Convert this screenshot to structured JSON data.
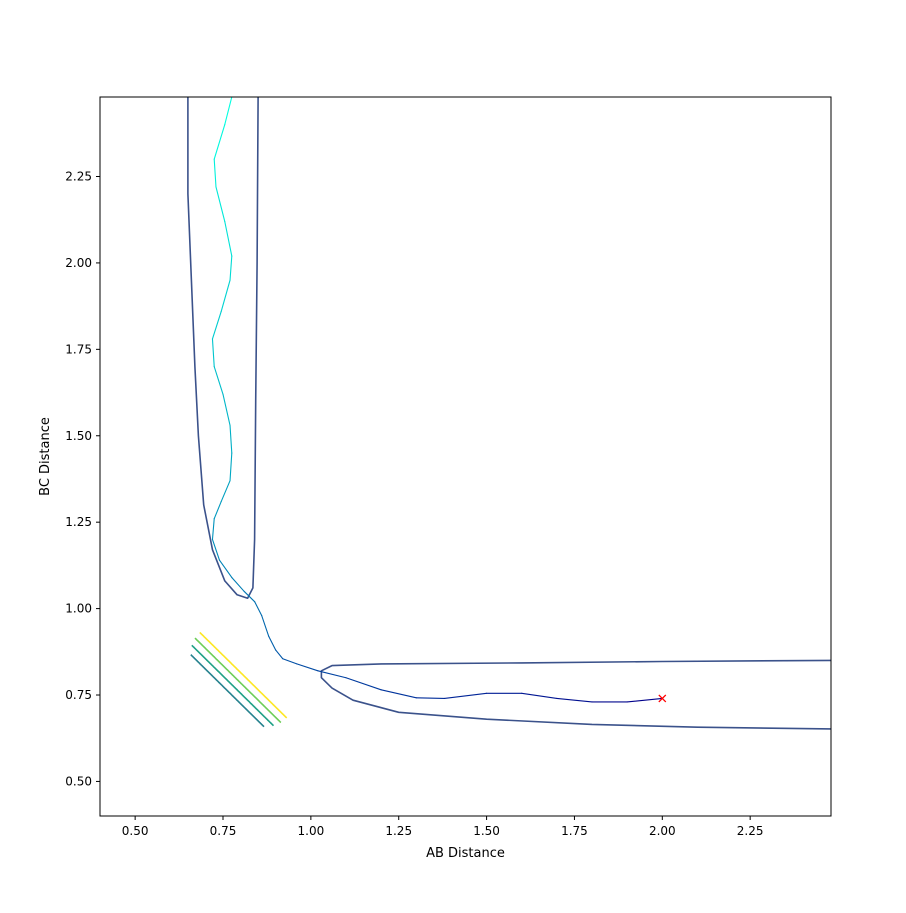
{
  "chart_data": {
    "type": "contour",
    "title": "",
    "xlabel": "AB Distance",
    "ylabel": "BC Distance",
    "xlim": [
      0.4,
      2.48
    ],
    "ylim": [
      0.4,
      2.48
    ],
    "xticks": [
      0.5,
      0.75,
      1.0,
      1.25,
      1.5,
      1.75,
      2.0,
      2.25
    ],
    "xtick_labels": [
      "0.50",
      "0.75",
      "1.00",
      "1.25",
      "1.50",
      "1.75",
      "2.00",
      "2.25"
    ],
    "yticks": [
      0.5,
      0.75,
      1.0,
      1.25,
      1.5,
      1.75,
      2.0,
      2.25
    ],
    "ytick_labels": [
      "0.50",
      "0.75",
      "1.00",
      "1.25",
      "1.50",
      "1.75",
      "2.00",
      "2.25"
    ],
    "grid": false,
    "contours": [
      {
        "level": 1,
        "color": "#26828e",
        "ax": 0.61,
        "ay": 0.61,
        "ex": 0.915,
        "ey": 0.915,
        "k": 0.14
      },
      {
        "level": 2,
        "color": "#1fa187",
        "ax": 0.585,
        "ay": 0.585,
        "ex": 0.97,
        "ey": 0.97,
        "k": 0.16
      },
      {
        "level": 3,
        "color": "#6ece58",
        "ax": 0.565,
        "ay": 0.565,
        "ex": 1.02,
        "ey": 1.02,
        "k": 0.17
      },
      {
        "level": 4,
        "color": "#fde725",
        "ax": 0.545,
        "ay": 0.545,
        "ex": 1.07,
        "ey": 1.07,
        "k": 0.18
      }
    ],
    "inner_contours": [
      {
        "name": "left",
        "color": "#3b528b",
        "points": [
          [
            0.65,
            2.48
          ],
          [
            0.65,
            2.2
          ],
          [
            0.66,
            1.95
          ],
          [
            0.67,
            1.7
          ],
          [
            0.68,
            1.5
          ],
          [
            0.695,
            1.3
          ],
          [
            0.72,
            1.17
          ],
          [
            0.755,
            1.08
          ],
          [
            0.79,
            1.04
          ],
          [
            0.82,
            1.03
          ],
          [
            0.835,
            1.06
          ],
          [
            0.84,
            1.2
          ],
          [
            0.843,
            1.6
          ],
          [
            0.847,
            2.0
          ],
          [
            0.85,
            2.48
          ]
        ]
      },
      {
        "name": "bottom",
        "color": "#3b528b",
        "points": [
          [
            2.48,
            0.85
          ],
          [
            2.0,
            0.847
          ],
          [
            1.6,
            0.843
          ],
          [
            1.2,
            0.84
          ],
          [
            1.06,
            0.835
          ],
          [
            1.03,
            0.82
          ],
          [
            1.03,
            0.8
          ],
          [
            1.06,
            0.77
          ],
          [
            1.12,
            0.735
          ],
          [
            1.25,
            0.7
          ],
          [
            1.5,
            0.68
          ],
          [
            1.8,
            0.665
          ],
          [
            2.1,
            0.657
          ],
          [
            2.48,
            0.652
          ]
        ]
      }
    ],
    "trajectory": {
      "color_start": "#00ffe0",
      "color_end": "#00008b",
      "points": [
        [
          0.775,
          2.48
        ],
        [
          0.755,
          2.4
        ],
        [
          0.725,
          2.3
        ],
        [
          0.73,
          2.22
        ],
        [
          0.755,
          2.12
        ],
        [
          0.775,
          2.02
        ],
        [
          0.77,
          1.95
        ],
        [
          0.745,
          1.86
        ],
        [
          0.72,
          1.78
        ],
        [
          0.725,
          1.7
        ],
        [
          0.75,
          1.62
        ],
        [
          0.77,
          1.53
        ],
        [
          0.775,
          1.45
        ],
        [
          0.77,
          1.37
        ],
        [
          0.745,
          1.31
        ],
        [
          0.725,
          1.26
        ],
        [
          0.72,
          1.2
        ],
        [
          0.74,
          1.14
        ],
        [
          0.775,
          1.09
        ],
        [
          0.81,
          1.05
        ],
        [
          0.84,
          1.02
        ],
        [
          0.86,
          0.98
        ],
        [
          0.88,
          0.92
        ],
        [
          0.9,
          0.88
        ],
        [
          0.92,
          0.855
        ],
        [
          0.96,
          0.84
        ],
        [
          1.02,
          0.82
        ],
        [
          1.1,
          0.8
        ],
        [
          1.2,
          0.765
        ],
        [
          1.3,
          0.742
        ],
        [
          1.38,
          0.74
        ],
        [
          1.5,
          0.755
        ],
        [
          1.6,
          0.755
        ],
        [
          1.7,
          0.74
        ],
        [
          1.8,
          0.73
        ],
        [
          1.9,
          0.73
        ],
        [
          2.0,
          0.74
        ]
      ]
    },
    "end_marker": {
      "x": 2.0,
      "y": 0.74,
      "color": "#ff0000",
      "symbol": "x"
    }
  }
}
